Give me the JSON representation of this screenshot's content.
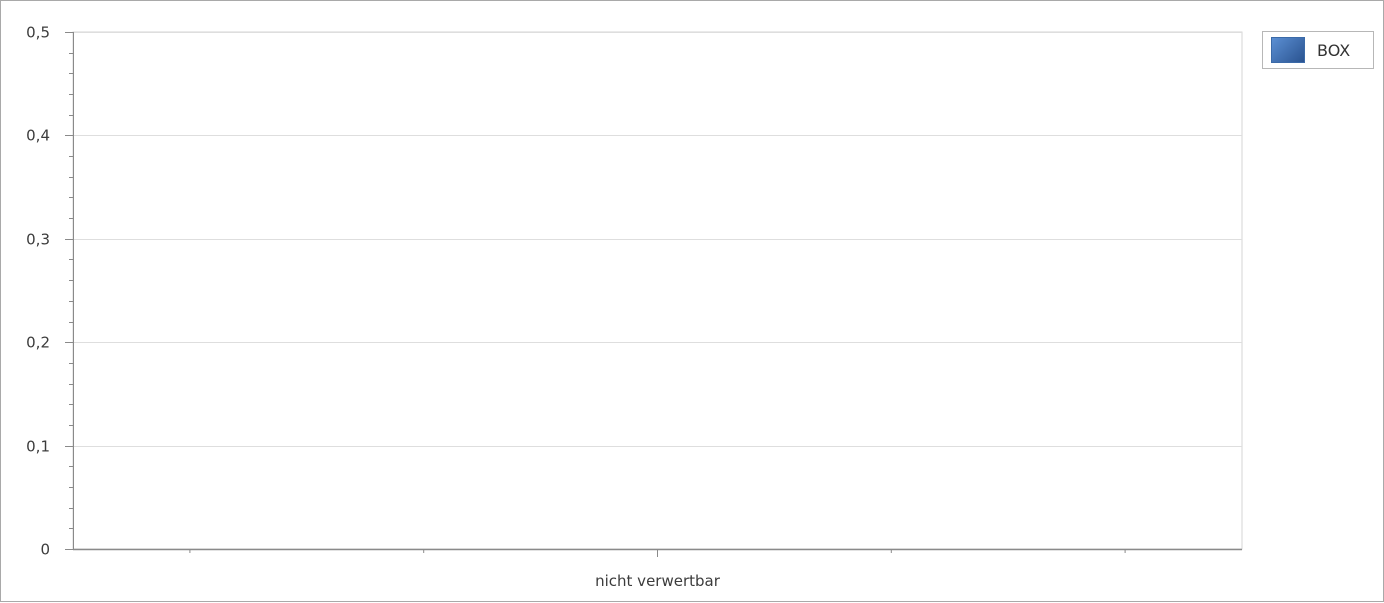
{
  "chart_data": {
    "type": "bar",
    "categories": [
      "nicht verwertbar"
    ],
    "series": [
      {
        "name": "BOX",
        "values": [
          0
        ],
        "color": "#3a6aa8"
      }
    ],
    "ylim": [
      0,
      0.5
    ],
    "yticks": [
      "0",
      "0,1",
      "0,2",
      "0,3",
      "0,4",
      "0,5"
    ],
    "ytick_values": [
      0,
      0.1,
      0.2,
      0.3,
      0.4,
      0.5
    ],
    "y_minor_per_major": 5,
    "grid": true,
    "legend_position": "top-right",
    "colors": {
      "grid": "#dedede",
      "axis": "#8a8a8a",
      "swatch_light": "#5b8fd3",
      "swatch_dark": "#2a5390"
    }
  }
}
